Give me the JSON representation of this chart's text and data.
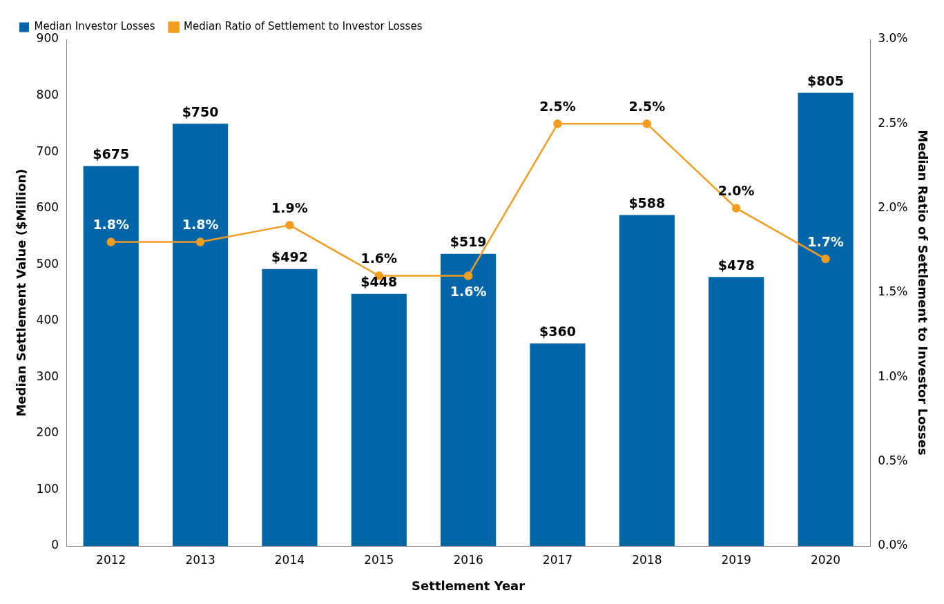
{
  "chart_data": {
    "type": "bar",
    "categories": [
      "2012",
      "2013",
      "2014",
      "2015",
      "2016",
      "2017",
      "2018",
      "2019",
      "2020"
    ],
    "series": [
      {
        "name": "Median Investor Losses",
        "color": "#0066a8",
        "values": [
          675,
          750,
          492,
          448,
          519,
          360,
          588,
          478,
          805
        ],
        "value_labels": [
          "$675",
          "$750",
          "$492",
          "$448",
          "$519",
          "$360",
          "$588",
          "$478",
          "$805"
        ]
      },
      {
        "name": "Median Ratio of Settlement to Investor Losses",
        "type": "line",
        "axis": "y2",
        "color": "#f39c1f",
        "values": [
          1.8,
          1.8,
          1.9,
          1.6,
          1.6,
          2.5,
          2.5,
          2.0,
          1.7
        ],
        "value_labels": [
          "1.8%",
          "1.8%",
          "1.9%",
          "1.6%",
          "1.6%",
          "2.5%",
          "2.5%",
          "2.0%",
          "1.7%"
        ]
      }
    ],
    "xlabel": "Settlement Year",
    "ylabel": "Median Settlement Value ($Million)",
    "y2label": "Median Ratio of Settlement to Investor Losses",
    "ylim": [
      0,
      900
    ],
    "yticks": [
      0,
      100,
      200,
      300,
      400,
      500,
      600,
      700,
      800,
      900
    ],
    "y2lim": [
      0,
      3
    ],
    "y2ticks": [
      {
        "value": 0,
        "label": "0.0%"
      },
      {
        "value": 0.5,
        "label": "0.5%"
      },
      {
        "value": 1,
        "label": "1.0%"
      },
      {
        "value": 1.5,
        "label": "1.5%"
      },
      {
        "value": 2,
        "label": "2.0%"
      },
      {
        "value": 2.5,
        "label": "2.5%"
      },
      {
        "value": 3,
        "label": "3.0%"
      }
    ],
    "grid": false,
    "legend": "top left",
    "marker": "circle",
    "line_style": "solid"
  }
}
